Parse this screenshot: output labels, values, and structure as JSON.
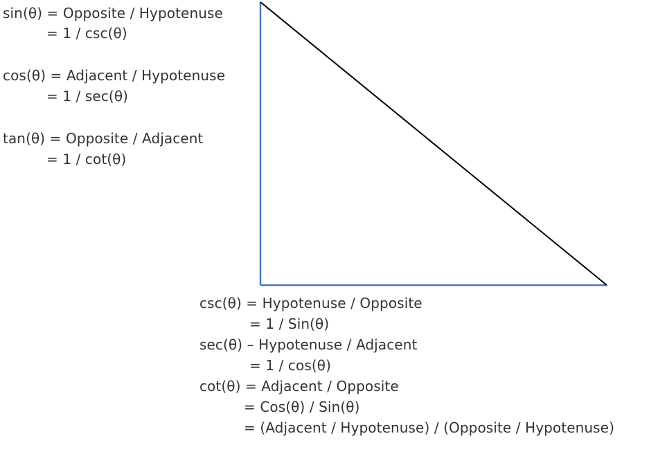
{
  "colors": {
    "text": "#333333",
    "leg_stroke": "#4a78c2",
    "hypotenuse_stroke": "#000000",
    "background": "#ffffff"
  },
  "top_left_formulas": {
    "sin_line1": "sin(θ) = Opposite / Hypotenuse",
    "sin_line2": "= 1 / csc(θ)",
    "cos_line1": "cos(θ) = Adjacent / Hypotenuse",
    "cos_line2": "= 1 / sec(θ)",
    "tan_line1": "tan(θ) = Opposite / Adjacent",
    "tan_line2": "= 1 / cot(θ)"
  },
  "bottom_formulas": {
    "csc_line1": "csc(θ) = Hypotenuse / Opposite",
    "csc_line2": "=  1 / Sin(θ)",
    "sec_line1": "sec(θ) – Hypotenuse / Adjacent",
    "sec_line2": "= 1 / cos(θ)",
    "cot_line1": "cot(θ) = Adjacent / Opposite",
    "cot_line2": "= Cos(θ) / Sin(θ)",
    "cot_line3": "= (Adjacent / Hypotenuse) / (Opposite / Hypotenuse)"
  }
}
